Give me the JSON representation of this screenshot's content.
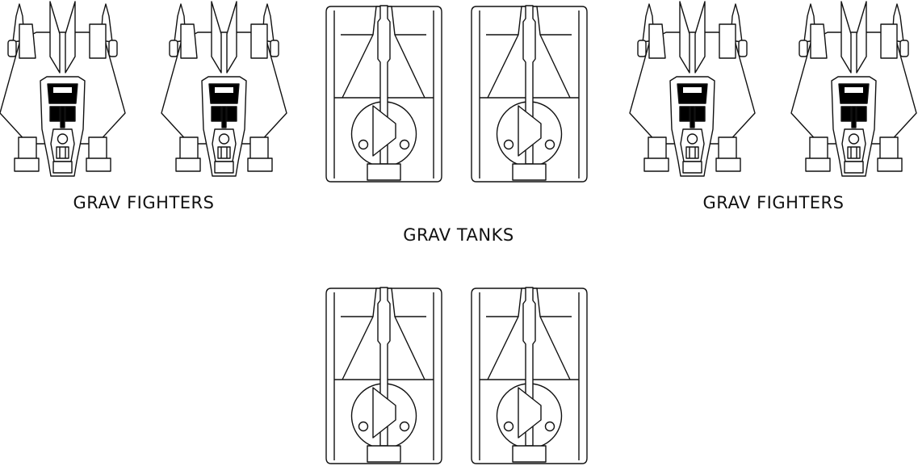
{
  "labels": {
    "left_group": "GRAV FIGHTERS",
    "center_group": "GRAV TANKS",
    "right_group": "GRAV FIGHTERS"
  },
  "colors": {
    "stroke": "#111111",
    "fill": "#ffffff",
    "cockpit": "#000000"
  },
  "icons": {
    "fighter": "grav-fighter-icon",
    "tank": "grav-tank-icon"
  }
}
